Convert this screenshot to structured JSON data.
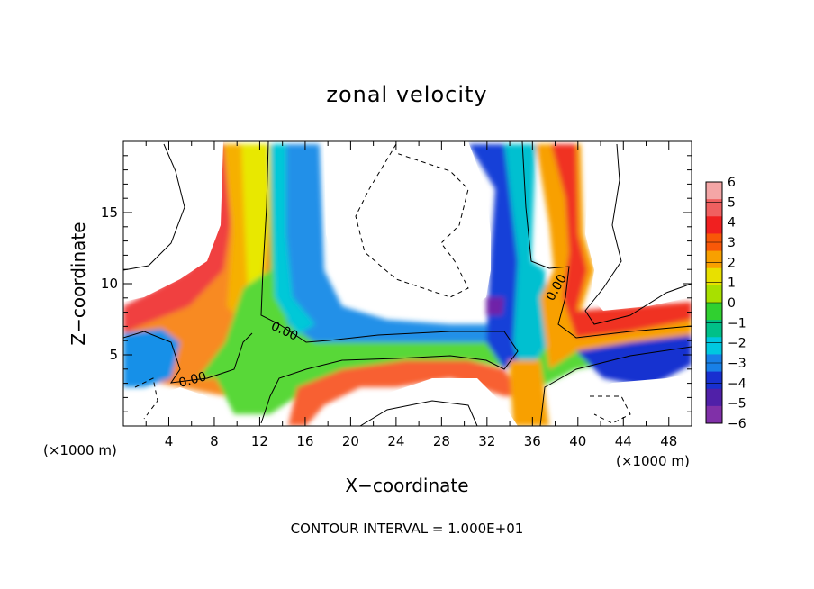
{
  "chart_data": {
    "type": "heatmap",
    "title": "zonal velocity",
    "xlabel": "X−coordinate",
    "ylabel": "Z−coordinate",
    "x_unit_label": "(×1000 m)",
    "z_unit_label": "(×1000 m)",
    "xlim": [
      0,
      50
    ],
    "ylim": [
      0,
      20
    ],
    "x_ticks": [
      4,
      8,
      12,
      16,
      20,
      24,
      28,
      32,
      36,
      40,
      44,
      48
    ],
    "x_tick_labels": [
      "4",
      "8",
      "12",
      "16",
      "20",
      "24",
      "28",
      "32",
      "36",
      "40",
      "44",
      "48"
    ],
    "y_ticks": [
      5,
      10,
      15
    ],
    "y_tick_labels": [
      "5",
      "10",
      "15"
    ],
    "colorbar": {
      "levels": [
        "6",
        "5",
        "4",
        "3",
        "2",
        "1",
        "0",
        "−1",
        "−2",
        "−3",
        "−4",
        "−5",
        "−6"
      ],
      "colors": [
        "#f4a6a6",
        "#f06060",
        "#f02020",
        "#f85808",
        "#f8a000",
        "#e8e000",
        "#a8e000",
        "#30d030",
        "#00c088",
        "#00c8e0",
        "#1880e8",
        "#1830d0",
        "#5020a8",
        "#8030a8"
      ]
    },
    "contour_labels": [
      "0.00",
      "0.00",
      "0.00"
    ],
    "footer": "CONTOUR INTERVAL = 1.000E+01",
    "grid": false
  }
}
